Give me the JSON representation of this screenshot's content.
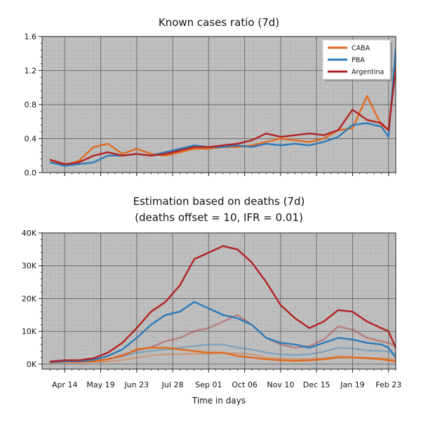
{
  "chart_data": [
    {
      "type": "line",
      "title": "Known cases ratio (7d)",
      "xlabel": "",
      "ylabel": "",
      "ylim": [
        0,
        1.6
      ],
      "yticks": [
        0.0,
        0.4,
        0.8,
        1.2,
        1.6
      ],
      "ytick_labels": [
        "0.0",
        "0.4",
        "0.8",
        "1.2",
        "1.6"
      ],
      "grid": true,
      "legend": "top-right",
      "x": [
        0,
        14,
        28,
        42,
        56,
        70,
        84,
        98,
        112,
        126,
        140,
        154,
        168,
        182,
        196,
        210,
        224,
        238,
        252,
        266,
        280,
        294,
        308,
        322,
        329,
        336
      ],
      "series": [
        {
          "name": "CABA",
          "color": "#e06a1e",
          "values": [
            0.15,
            0.08,
            0.14,
            0.3,
            0.34,
            0.22,
            0.28,
            0.22,
            0.2,
            0.24,
            0.28,
            0.28,
            0.3,
            0.3,
            0.32,
            0.36,
            0.4,
            0.38,
            0.36,
            0.4,
            0.5,
            0.52,
            0.9,
            0.56,
            0.5,
            1.3
          ]
        },
        {
          "name": "PBA",
          "color": "#2e7ab8",
          "values": [
            0.12,
            0.08,
            0.1,
            0.12,
            0.2,
            0.2,
            0.22,
            0.2,
            0.24,
            0.28,
            0.32,
            0.3,
            0.3,
            0.32,
            0.3,
            0.34,
            0.32,
            0.34,
            0.32,
            0.36,
            0.42,
            0.56,
            0.58,
            0.54,
            0.42,
            1.45
          ]
        },
        {
          "name": "Argentina",
          "color": "#b22222",
          "values": [
            0.15,
            0.1,
            0.12,
            0.2,
            0.24,
            0.2,
            0.22,
            0.2,
            0.22,
            0.26,
            0.3,
            0.3,
            0.32,
            0.34,
            0.38,
            0.46,
            0.42,
            0.44,
            0.46,
            0.44,
            0.5,
            0.74,
            0.62,
            0.58,
            0.5,
            1.22
          ]
        }
      ]
    },
    {
      "type": "line",
      "title": "Estimation based on deaths (7d)",
      "subtitle": "(deaths offset = 10, IFR = 0.01)",
      "xlabel": "Time in days",
      "ylabel": "",
      "ylim": [
        -1500,
        40000
      ],
      "yticks": [
        0,
        10000,
        20000,
        30000,
        40000
      ],
      "ytick_labels": [
        "0K",
        "10K",
        "20K",
        "30K",
        "40K"
      ],
      "grid": true,
      "xticks": [
        14,
        49,
        84,
        119,
        154,
        189,
        224,
        259,
        294,
        329
      ],
      "xtick_labels": [
        "Apr 14",
        "May 19",
        "Jun 23",
        "Jul 28",
        "Sep 01",
        "Oct 06",
        "Nov 10",
        "Dec 15",
        "Jan 19",
        "Feb 23"
      ],
      "x": [
        0,
        14,
        28,
        42,
        56,
        70,
        84,
        98,
        112,
        126,
        140,
        154,
        168,
        182,
        196,
        210,
        224,
        238,
        252,
        266,
        280,
        294,
        308,
        322,
        329,
        336
      ],
      "series": [
        {
          "name": "CABA",
          "color": "#e06a1e",
          "opacity": 1.0,
          "values": [
            500,
            800,
            700,
            900,
            1500,
            2500,
            4500,
            5000,
            5000,
            4500,
            4000,
            3500,
            3500,
            2500,
            2000,
            1500,
            1200,
            1000,
            1200,
            1500,
            2000,
            2000,
            1800,
            1500,
            1200,
            800
          ]
        },
        {
          "name": "PBA",
          "color": "#2e7ab8",
          "opacity": 1.0,
          "values": [
            600,
            900,
            900,
            1300,
            2500,
            4500,
            8000,
            12000,
            15000,
            16000,
            19000,
            17000,
            15000,
            14000,
            12000,
            8000,
            6500,
            6000,
            5000,
            6500,
            8000,
            7500,
            6500,
            6000,
            5000,
            2000
          ]
        },
        {
          "name": "Argentina",
          "color": "#b22222",
          "opacity": 1.0,
          "values": [
            800,
            1200,
            1200,
            1800,
            3500,
            6500,
            11000,
            16000,
            19000,
            24000,
            32000,
            34000,
            36000,
            35000,
            31000,
            25000,
            18000,
            14000,
            11000,
            13000,
            16500,
            16000,
            13000,
            11000,
            10000,
            5000
          ]
        },
        {
          "name": "",
          "color": "#e06a1e",
          "opacity": 0.4,
          "values": [
            400,
            500,
            500,
            600,
            800,
            1200,
            2000,
            2600,
            3000,
            3000,
            3200,
            3200,
            3400,
            3300,
            3000,
            2000,
            1700,
            1500,
            1500,
            1800,
            2400,
            2200,
            2000,
            1800,
            1600,
            1400
          ]
        },
        {
          "name": "",
          "color": "#2e7ab8",
          "opacity": 0.4,
          "values": [
            500,
            700,
            800,
            1000,
            1500,
            2400,
            3500,
            4000,
            4500,
            5000,
            5500,
            6000,
            6000,
            5000,
            4500,
            3500,
            3000,
            2800,
            3000,
            3800,
            5000,
            4800,
            4200,
            4000,
            3800,
            3000
          ]
        },
        {
          "name": "",
          "color": "#b22222",
          "opacity": 0.4,
          "values": [
            500,
            800,
            800,
            1000,
            1500,
            2800,
            4200,
            5200,
            7000,
            8000,
            10000,
            11000,
            13000,
            15000,
            12000,
            8000,
            6000,
            5000,
            5500,
            7500,
            11500,
            10500,
            8000,
            7000,
            6500,
            5500
          ]
        }
      ]
    }
  ]
}
